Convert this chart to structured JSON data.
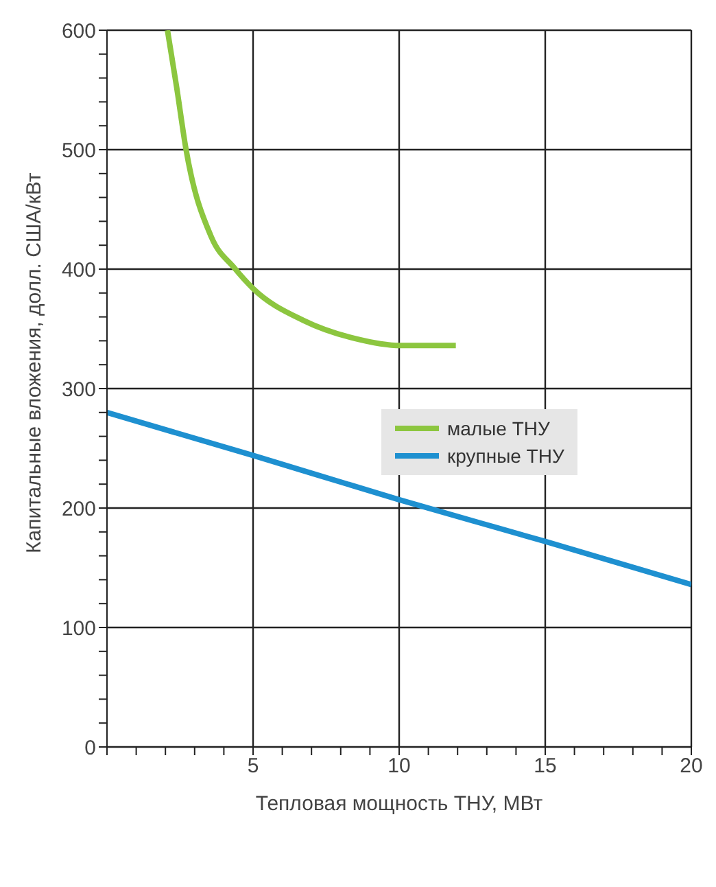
{
  "chart_data": {
    "type": "line",
    "xlabel": "Тепловая мощность ТНУ, МВт",
    "ylabel": "Капитальные вложения, долл. США/кВт",
    "xlim": [
      0,
      20
    ],
    "xticks": [
      {
        "value": 0,
        "label": null
      },
      {
        "value": 1,
        "label": null
      },
      {
        "value": 2,
        "label": null
      },
      {
        "value": 3,
        "label": null
      },
      {
        "value": 4,
        "label": null
      },
      5,
      {
        "value": 6,
        "label": null
      },
      {
        "value": 7,
        "label": null
      },
      {
        "value": 8,
        "label": null
      },
      {
        "value": 9,
        "label": null
      },
      10,
      {
        "value": 11,
        "label": null
      },
      {
        "value": 12,
        "label": null
      },
      {
        "value": 13,
        "label": null
      },
      {
        "value": 14,
        "label": null
      },
      15,
      {
        "value": 16,
        "label": null
      },
      {
        "value": 17,
        "label": null
      },
      {
        "value": 18,
        "label": null
      },
      {
        "value": 19,
        "label": null
      },
      20
    ],
    "ylim": [
      0,
      600
    ],
    "yticks": [
      0,
      {
        "value": 20,
        "label": null
      },
      {
        "value": 40,
        "label": null
      },
      {
        "value": 60,
        "label": null
      },
      {
        "value": 80,
        "label": null
      },
      100,
      {
        "value": 120,
        "label": null
      },
      {
        "value": 140,
        "label": null
      },
      {
        "value": 160,
        "label": null
      },
      {
        "value": 180,
        "label": null
      },
      200,
      {
        "value": 220,
        "label": null
      },
      {
        "value": 240,
        "label": null
      },
      {
        "value": 260,
        "label": null
      },
      {
        "value": 280,
        "label": null
      },
      300,
      {
        "value": 320,
        "label": null
      },
      {
        "value": 340,
        "label": null
      },
      {
        "value": 360,
        "label": null
      },
      {
        "value": 380,
        "label": null
      },
      400,
      {
        "value": 420,
        "label": null
      },
      {
        "value": 440,
        "label": null
      },
      {
        "value": 460,
        "label": null
      },
      {
        "value": 480,
        "label": null
      },
      500,
      {
        "value": 520,
        "label": null
      },
      {
        "value": 540,
        "label": null
      },
      {
        "value": 560,
        "label": null
      },
      {
        "value": 580,
        "label": null
      },
      600
    ],
    "grid": true,
    "legend": "right",
    "marker": "none",
    "line_style": "solid",
    "series": [
      {
        "name": "малые ТНУ",
        "color": "#8cc63f",
        "x": [
          2.07,
          2.38,
          2.7,
          3.57,
          4.36,
          4.99,
          6.73,
          8.47,
          10.05,
          11.94
        ],
        "values": [
          600,
          553,
          501,
          427,
          401,
          384,
          357,
          342,
          336,
          336
        ]
      },
      {
        "name": "крупные ТНУ",
        "color": "#1e90d0",
        "x": [
          0,
          5,
          10,
          15,
          20
        ],
        "values": [
          280,
          244,
          207,
          172,
          136
        ]
      }
    ]
  }
}
